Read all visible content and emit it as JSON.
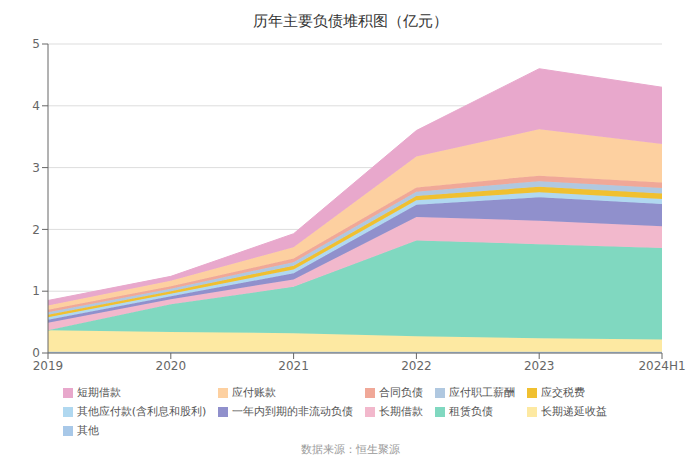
{
  "chart_data": {
    "type": "area",
    "title": "历年主要负债堆积图（亿元）",
    "annotation": "数据来源：恒生聚源",
    "categories": [
      "2019",
      "2020",
      "2021",
      "2022",
      "2023",
      "2024H1"
    ],
    "series": [
      {
        "name": "其他",
        "color": "#a8c8e8",
        "values": [
          0.02,
          0.02,
          0.02,
          0.02,
          0.02,
          0.02
        ]
      },
      {
        "name": "长期递延收益",
        "color": "#fde9a2",
        "values": [
          0.35,
          0.32,
          0.3,
          0.25,
          0.22,
          0.2
        ]
      },
      {
        "name": "租赁负债",
        "color": "#80d8c0",
        "values": [
          0.0,
          0.45,
          0.75,
          1.55,
          1.52,
          1.48
        ]
      },
      {
        "name": "长期借款",
        "color": "#f2b8cc",
        "values": [
          0.12,
          0.08,
          0.12,
          0.38,
          0.38,
          0.35
        ]
      },
      {
        "name": "一年内到期的非流动负债",
        "color": "#9090cc",
        "values": [
          0.05,
          0.05,
          0.1,
          0.2,
          0.38,
          0.36
        ]
      },
      {
        "name": "其他应付款(含利息和股利)",
        "color": "#b0d8f0",
        "values": [
          0.04,
          0.04,
          0.06,
          0.07,
          0.08,
          0.08
        ]
      },
      {
        "name": "应交税费",
        "color": "#f0c030",
        "values": [
          0.04,
          0.04,
          0.06,
          0.07,
          0.09,
          0.09
        ]
      },
      {
        "name": "应付职工薪酬",
        "color": "#b0c8e0",
        "values": [
          0.04,
          0.04,
          0.06,
          0.07,
          0.09,
          0.09
        ]
      },
      {
        "name": "合同负债",
        "color": "#f0a898",
        "values": [
          0.04,
          0.04,
          0.06,
          0.07,
          0.09,
          0.09
        ]
      },
      {
        "name": "应付账款",
        "color": "#fdd0a0",
        "values": [
          0.07,
          0.09,
          0.18,
          0.5,
          0.75,
          0.62
        ]
      },
      {
        "name": "短期借款",
        "color": "#e8a8cc",
        "values": [
          0.08,
          0.07,
          0.22,
          0.42,
          0.98,
          0.92
        ]
      }
    ],
    "ylim": [
      0,
      5
    ],
    "yticks": [
      0,
      1,
      2,
      3,
      4,
      5
    ],
    "grid": true,
    "stacked": true,
    "legend": "bottom"
  }
}
